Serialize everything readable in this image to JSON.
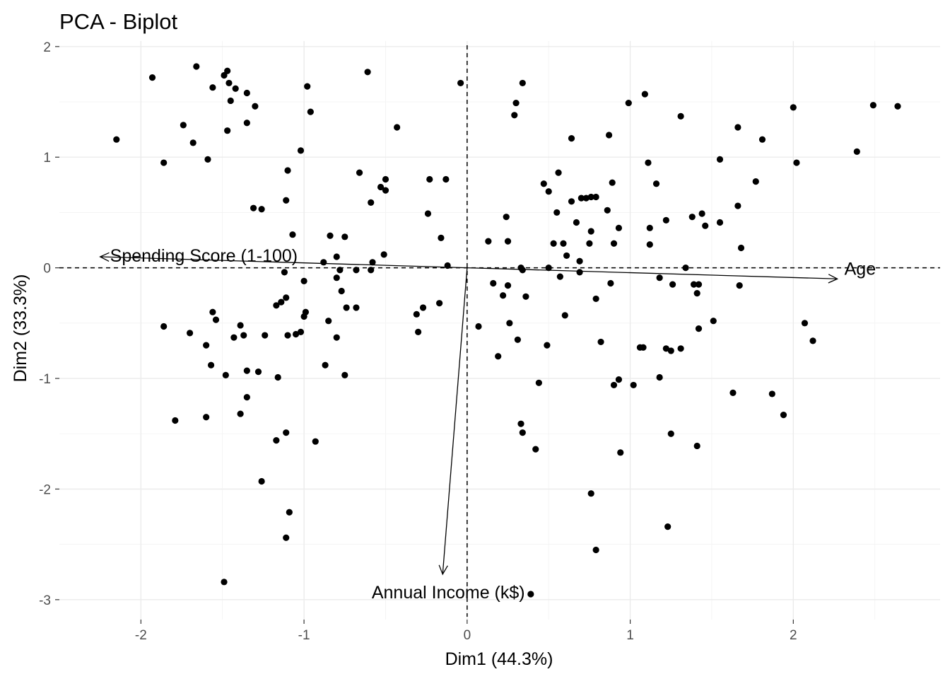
{
  "chart_data": {
    "type": "scatter",
    "title": "PCA - Biplot",
    "xlabel": "Dim1 (44.3%)",
    "ylabel": "Dim2 (33.3%)",
    "xlim": [
      -2.5,
      2.9
    ],
    "ylim": [
      -3.18,
      2.05
    ],
    "x_ticks": [
      -2,
      -1,
      0,
      1,
      2
    ],
    "y_ticks": [
      -3,
      -2,
      -1,
      0,
      1,
      2
    ],
    "x_tick_labels": [
      "-2",
      "-1",
      "0",
      "1",
      "2"
    ],
    "y_tick_labels": [
      "-3",
      "-2",
      "-1",
      "0",
      "1",
      "2"
    ],
    "grid": true,
    "reference_lines": {
      "x": 0,
      "y": 0,
      "style": "dashed"
    },
    "variables": [
      {
        "name": "Spending Score (1-100)",
        "x": -2.25,
        "y": 0.1
      },
      {
        "name": "Age",
        "x": 2.27,
        "y": -0.1
      },
      {
        "name": "Annual Income (k$)",
        "x": -0.15,
        "y": -2.77
      }
    ],
    "points": [
      [
        -2.15,
        1.16
      ],
      [
        -1.93,
        1.72
      ],
      [
        -1.86,
        0.95
      ],
      [
        -1.74,
        1.29
      ],
      [
        -1.68,
        1.13
      ],
      [
        -1.66,
        1.82
      ],
      [
        -1.59,
        0.98
      ],
      [
        -1.56,
        1.63
      ],
      [
        -1.49,
        1.74
      ],
      [
        -1.47,
        1.78
      ],
      [
        -1.46,
        1.67
      ],
      [
        -1.45,
        1.51
      ],
      [
        -1.42,
        1.62
      ],
      [
        -1.47,
        1.24
      ],
      [
        -1.35,
        1.58
      ],
      [
        -1.35,
        1.31
      ],
      [
        -1.3,
        1.46
      ],
      [
        -1.1,
        0.88
      ],
      [
        -1.11,
        0.61
      ],
      [
        -1.02,
        1.06
      ],
      [
        -0.98,
        1.64
      ],
      [
        -0.96,
        1.41
      ],
      [
        -0.61,
        1.77
      ],
      [
        -0.43,
        1.27
      ],
      [
        -0.04,
        1.67
      ],
      [
        -0.66,
        0.86
      ],
      [
        -0.5,
        0.8
      ],
      [
        -0.53,
        0.73
      ],
      [
        -0.5,
        0.7
      ],
      [
        -0.59,
        0.59
      ],
      [
        -0.23,
        0.8
      ],
      [
        -0.13,
        0.8
      ],
      [
        -0.24,
        0.49
      ],
      [
        -0.16,
        0.27
      ],
      [
        -0.12,
        0.02
      ],
      [
        -1.31,
        0.54
      ],
      [
        -1.26,
        0.53
      ],
      [
        -1.07,
        0.3
      ],
      [
        -0.84,
        0.29
      ],
      [
        -0.75,
        0.28
      ],
      [
        -0.88,
        0.05
      ],
      [
        -0.58,
        0.05
      ],
      [
        -0.51,
        0.12
      ],
      [
        -0.8,
        0.1
      ],
      [
        -0.78,
        -0.02
      ],
      [
        -0.68,
        -0.02
      ],
      [
        -0.59,
        -0.02
      ],
      [
        -1.12,
        -0.04
      ],
      [
        -0.8,
        -0.09
      ],
      [
        -1.0,
        -0.12
      ],
      [
        -0.77,
        -0.21
      ],
      [
        -1.11,
        -0.27
      ],
      [
        -1.14,
        -0.31
      ],
      [
        -1.17,
        -0.34
      ],
      [
        -0.99,
        -0.4
      ],
      [
        -1.0,
        -0.44
      ],
      [
        -0.74,
        -0.36
      ],
      [
        -0.68,
        -0.36
      ],
      [
        -0.85,
        -0.48
      ],
      [
        -0.8,
        -0.63
      ],
      [
        -1.02,
        -0.58
      ],
      [
        -1.05,
        -0.6
      ],
      [
        -1.1,
        -0.61
      ],
      [
        -1.24,
        -0.61
      ],
      [
        -1.37,
        -0.61
      ],
      [
        -1.39,
        -0.52
      ],
      [
        -1.43,
        -0.63
      ],
      [
        -1.56,
        -0.4
      ],
      [
        -1.54,
        -0.47
      ],
      [
        -1.6,
        -0.7
      ],
      [
        -1.7,
        -0.59
      ],
      [
        -1.86,
        -0.53
      ],
      [
        -1.57,
        -0.88
      ],
      [
        -1.48,
        -0.97
      ],
      [
        -1.35,
        -0.93
      ],
      [
        -1.28,
        -0.94
      ],
      [
        -1.16,
        -0.99
      ],
      [
        -0.87,
        -0.88
      ],
      [
        -0.75,
        -0.97
      ],
      [
        -1.35,
        -1.17
      ],
      [
        -1.39,
        -1.32
      ],
      [
        -1.6,
        -1.35
      ],
      [
        -1.79,
        -1.38
      ],
      [
        -1.11,
        -1.49
      ],
      [
        -1.17,
        -1.56
      ],
      [
        -0.93,
        -1.57
      ],
      [
        -1.26,
        -1.93
      ],
      [
        -1.09,
        -2.21
      ],
      [
        -1.11,
        -2.44
      ],
      [
        -1.49,
        -2.84
      ],
      [
        -0.31,
        -0.42
      ],
      [
        -0.27,
        -0.36
      ],
      [
        -0.17,
        -0.32
      ],
      [
        -0.3,
        -0.58
      ],
      [
        0.13,
        0.24
      ],
      [
        0.24,
        0.46
      ],
      [
        0.25,
        0.24
      ],
      [
        0.29,
        1.38
      ],
      [
        0.3,
        1.49
      ],
      [
        0.34,
        1.67
      ],
      [
        0.16,
        -0.14
      ],
      [
        0.22,
        -0.25
      ],
      [
        0.25,
        -0.16
      ],
      [
        0.26,
        -0.5
      ],
      [
        0.07,
        -0.53
      ],
      [
        0.19,
        -0.8
      ],
      [
        0.31,
        -0.65
      ],
      [
        0.33,
        0.0
      ],
      [
        0.34,
        -0.02
      ],
      [
        0.36,
        -0.26
      ],
      [
        0.49,
        -0.7
      ],
      [
        0.44,
        -1.04
      ],
      [
        0.33,
        -1.41
      ],
      [
        0.34,
        -1.49
      ],
      [
        0.42,
        -1.64
      ],
      [
        0.39,
        -2.95
      ],
      [
        0.47,
        0.76
      ],
      [
        0.5,
        0.69
      ],
      [
        0.53,
        0.22
      ],
      [
        0.55,
        0.5
      ],
      [
        0.56,
        0.86
      ],
      [
        0.59,
        0.22
      ],
      [
        0.61,
        0.11
      ],
      [
        0.64,
        0.6
      ],
      [
        0.64,
        1.17
      ],
      [
        0.67,
        0.41
      ],
      [
        0.7,
        0.63
      ],
      [
        0.73,
        0.63
      ],
      [
        0.76,
        0.64
      ],
      [
        0.79,
        0.64
      ],
      [
        0.76,
        0.33
      ],
      [
        0.75,
        0.22
      ],
      [
        0.69,
        0.06
      ],
      [
        0.5,
        0.0
      ],
      [
        0.57,
        -0.08
      ],
      [
        0.6,
        -0.43
      ],
      [
        0.69,
        -0.04
      ],
      [
        0.79,
        -0.28
      ],
      [
        0.82,
        -0.67
      ],
      [
        0.86,
        0.52
      ],
      [
        0.87,
        1.2
      ],
      [
        0.88,
        -0.14
      ],
      [
        0.89,
        0.77
      ],
      [
        0.9,
        0.22
      ],
      [
        0.93,
        0.36
      ],
      [
        0.9,
        -1.06
      ],
      [
        0.93,
        -1.01
      ],
      [
        0.94,
        -1.67
      ],
      [
        0.76,
        -2.04
      ],
      [
        0.79,
        -2.55
      ],
      [
        0.99,
        1.49
      ],
      [
        1.02,
        -1.06
      ],
      [
        1.06,
        -0.72
      ],
      [
        1.08,
        -0.72
      ],
      [
        1.09,
        1.57
      ],
      [
        1.11,
        0.95
      ],
      [
        1.12,
        0.36
      ],
      [
        1.12,
        0.21
      ],
      [
        1.16,
        0.76
      ],
      [
        1.18,
        -0.09
      ],
      [
        1.18,
        -0.99
      ],
      [
        1.22,
        0.43
      ],
      [
        1.22,
        -0.73
      ],
      [
        1.25,
        -0.75
      ],
      [
        1.26,
        -0.15
      ],
      [
        1.25,
        -1.5
      ],
      [
        1.23,
        -2.34
      ],
      [
        1.31,
        -0.73
      ],
      [
        1.31,
        1.37
      ],
      [
        1.34,
        0.0
      ],
      [
        1.38,
        0.46
      ],
      [
        1.39,
        -0.15
      ],
      [
        1.41,
        -0.23
      ],
      [
        1.42,
        -0.15
      ],
      [
        1.42,
        -0.55
      ],
      [
        1.41,
        -1.61
      ],
      [
        1.44,
        0.49
      ],
      [
        1.46,
        0.38
      ],
      [
        1.51,
        -0.48
      ],
      [
        1.55,
        0.98
      ],
      [
        1.55,
        0.41
      ],
      [
        1.63,
        -1.13
      ],
      [
        1.66,
        1.27
      ],
      [
        1.66,
        0.56
      ],
      [
        1.67,
        -0.16
      ],
      [
        1.68,
        0.18
      ],
      [
        1.77,
        0.78
      ],
      [
        1.81,
        1.16
      ],
      [
        1.87,
        -1.14
      ],
      [
        1.94,
        -1.33
      ],
      [
        2.0,
        1.45
      ],
      [
        2.02,
        0.95
      ],
      [
        2.07,
        -0.5
      ],
      [
        2.12,
        -0.66
      ],
      [
        2.39,
        1.05
      ],
      [
        2.49,
        1.47
      ],
      [
        2.64,
        1.46
      ]
    ]
  }
}
